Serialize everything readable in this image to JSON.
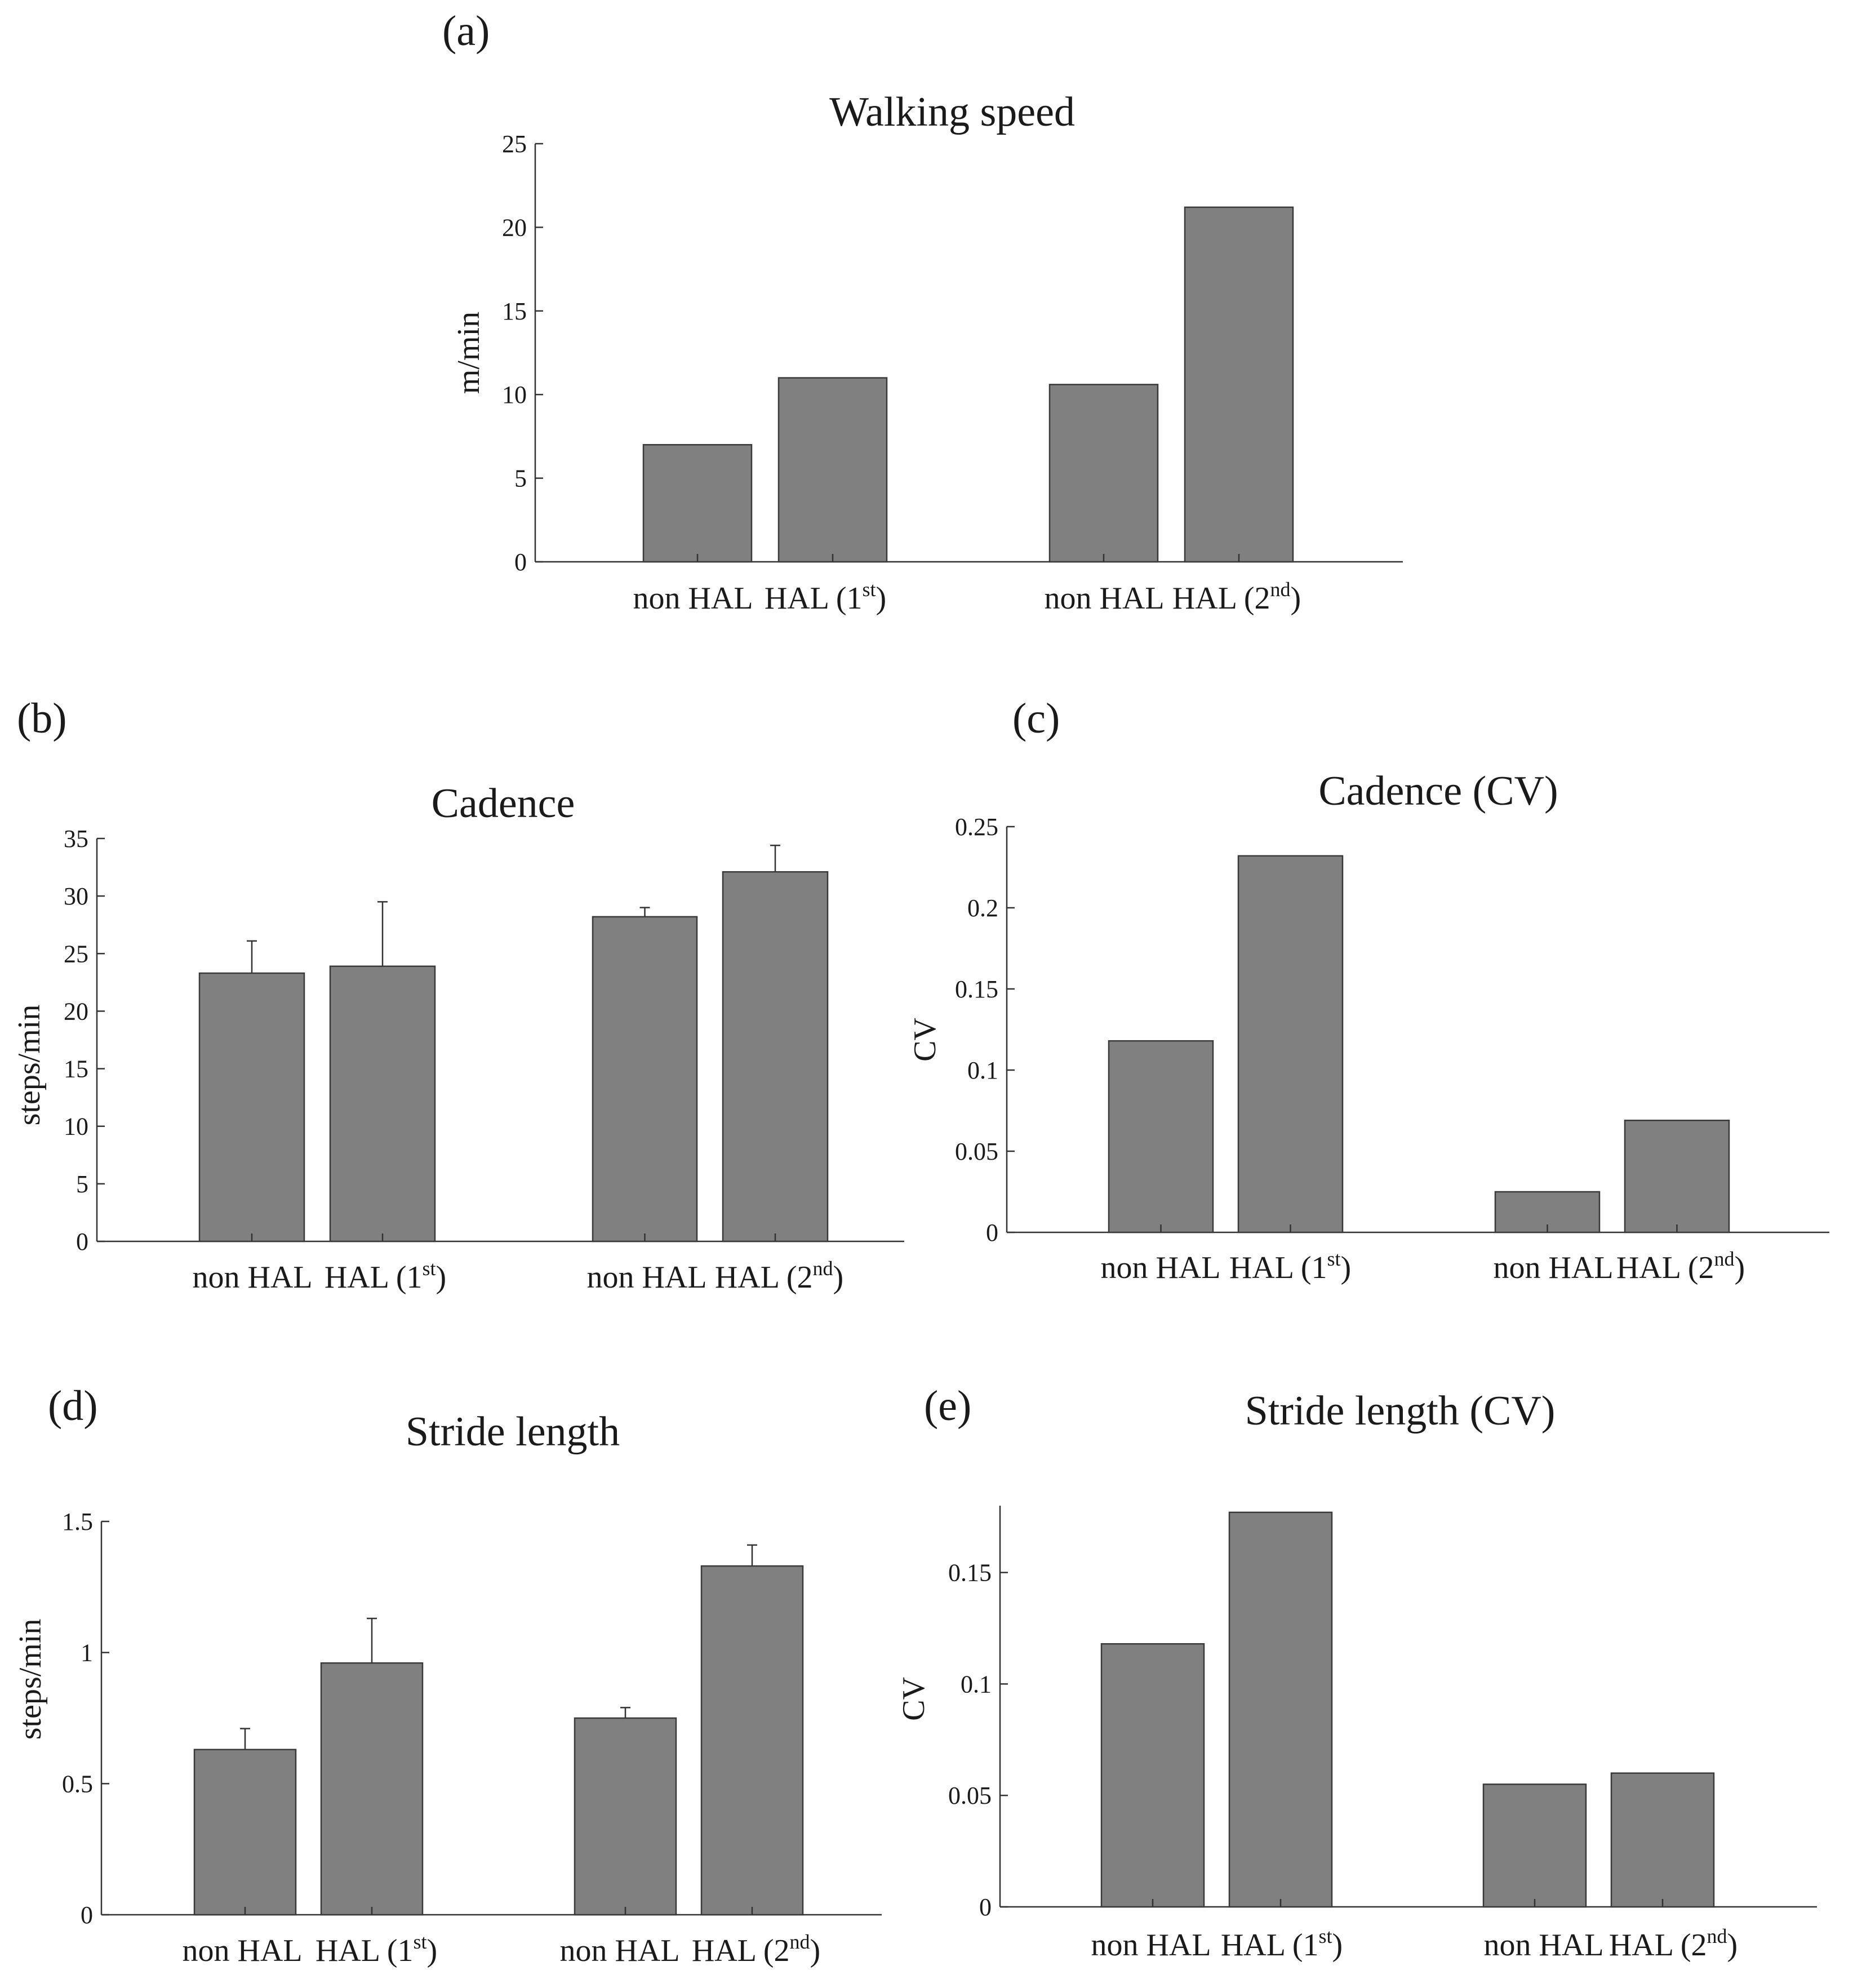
{
  "chart_data": [
    {
      "id": "a",
      "type": "bar",
      "panel_label": "(a)",
      "title": "Walking speed",
      "ylabel": "m/min",
      "ylim": [
        0,
        25
      ],
      "yticks": [
        0,
        5,
        10,
        15,
        20,
        25
      ],
      "ytick_labels": [
        "0",
        "5",
        "10",
        "15",
        "20",
        "25"
      ],
      "categories": [
        {
          "text": "non HAL",
          "sup": "",
          "close": ""
        },
        {
          "text": "HAL  (1",
          "sup": "st",
          "close": ")"
        },
        {
          "text": "non HAL",
          "sup": "",
          "close": ""
        },
        {
          "text": "HAL  (2",
          "sup": "nd",
          "close": ")"
        }
      ],
      "values": [
        7.0,
        11.0,
        10.6,
        21.2
      ],
      "errors": [
        null,
        null,
        null,
        null
      ]
    },
    {
      "id": "b",
      "type": "bar",
      "panel_label": "(b)",
      "title": "Cadence",
      "ylabel": "steps/min",
      "ylim": [
        0,
        35
      ],
      "yticks": [
        0,
        5,
        10,
        15,
        20,
        25,
        30,
        35
      ],
      "ytick_labels": [
        "0",
        "5",
        "10",
        "15",
        "20",
        "25",
        "30",
        "35"
      ],
      "categories": [
        {
          "text": "non HAL",
          "sup": "",
          "close": ""
        },
        {
          "text": "HAL  (1",
          "sup": "st",
          "close": ")"
        },
        {
          "text": "non HAL",
          "sup": "",
          "close": ""
        },
        {
          "text": "HAL  (2",
          "sup": "nd",
          "close": ")"
        }
      ],
      "values": [
        23.3,
        23.9,
        28.2,
        32.1
      ],
      "errors": [
        2.8,
        5.6,
        0.8,
        2.3
      ]
    },
    {
      "id": "c",
      "type": "bar",
      "panel_label": "(c)",
      "title": "Cadence (CV)",
      "ylabel": "CV",
      "ylim": [
        0,
        0.25
      ],
      "yticks": [
        0,
        0.05,
        0.1,
        0.15,
        0.2,
        0.25
      ],
      "ytick_labels": [
        "0",
        "0.05",
        "0.1",
        "0.15",
        "0.2",
        "0.25"
      ],
      "categories": [
        {
          "text": "non HAL",
          "sup": "",
          "close": ""
        },
        {
          "text": "HAL  (1",
          "sup": "st",
          "close": ")"
        },
        {
          "text": "non HAL",
          "sup": "",
          "close": ""
        },
        {
          "text": "HAL  (2",
          "sup": "nd",
          "close": ")"
        }
      ],
      "values": [
        0.118,
        0.232,
        0.025,
        0.069
      ],
      "errors": [
        null,
        null,
        null,
        null
      ]
    },
    {
      "id": "d",
      "type": "bar",
      "panel_label": "(d)",
      "title": "Stride length",
      "ylabel": "steps/min",
      "ylim": [
        0,
        1.5
      ],
      "yticks": [
        0,
        0.5,
        1,
        1.5
      ],
      "ytick_labels": [
        "0",
        "0.5",
        "1",
        "1.5"
      ],
      "categories": [
        {
          "text": "non HAL",
          "sup": "",
          "close": ""
        },
        {
          "text": "HAL  (1",
          "sup": "st",
          "close": ")"
        },
        {
          "text": "non HAL",
          "sup": "",
          "close": ""
        },
        {
          "text": "HAL  (2",
          "sup": "nd",
          "close": ")"
        }
      ],
      "values": [
        0.63,
        0.96,
        0.75,
        1.33
      ],
      "errors": [
        0.08,
        0.17,
        0.04,
        0.08
      ]
    },
    {
      "id": "e",
      "type": "bar",
      "panel_label": "(e)",
      "title": "Stride length (CV)",
      "ylabel": "CV",
      "ylim": [
        0,
        0.18
      ],
      "yticks": [
        0,
        0.05,
        0.1,
        0.15
      ],
      "ytick_labels": [
        "0",
        "0.05",
        "0.1",
        "0.15"
      ],
      "categories": [
        {
          "text": "non HAL",
          "sup": "",
          "close": ""
        },
        {
          "text": "HAL  (1",
          "sup": "st",
          "close": ")"
        },
        {
          "text": "non HAL",
          "sup": "",
          "close": ""
        },
        {
          "text": "HAL  (2",
          "sup": "nd",
          "close": ")"
        }
      ],
      "values": [
        0.118,
        0.177,
        0.055,
        0.06
      ],
      "errors": [
        null,
        null,
        null,
        null
      ]
    }
  ]
}
